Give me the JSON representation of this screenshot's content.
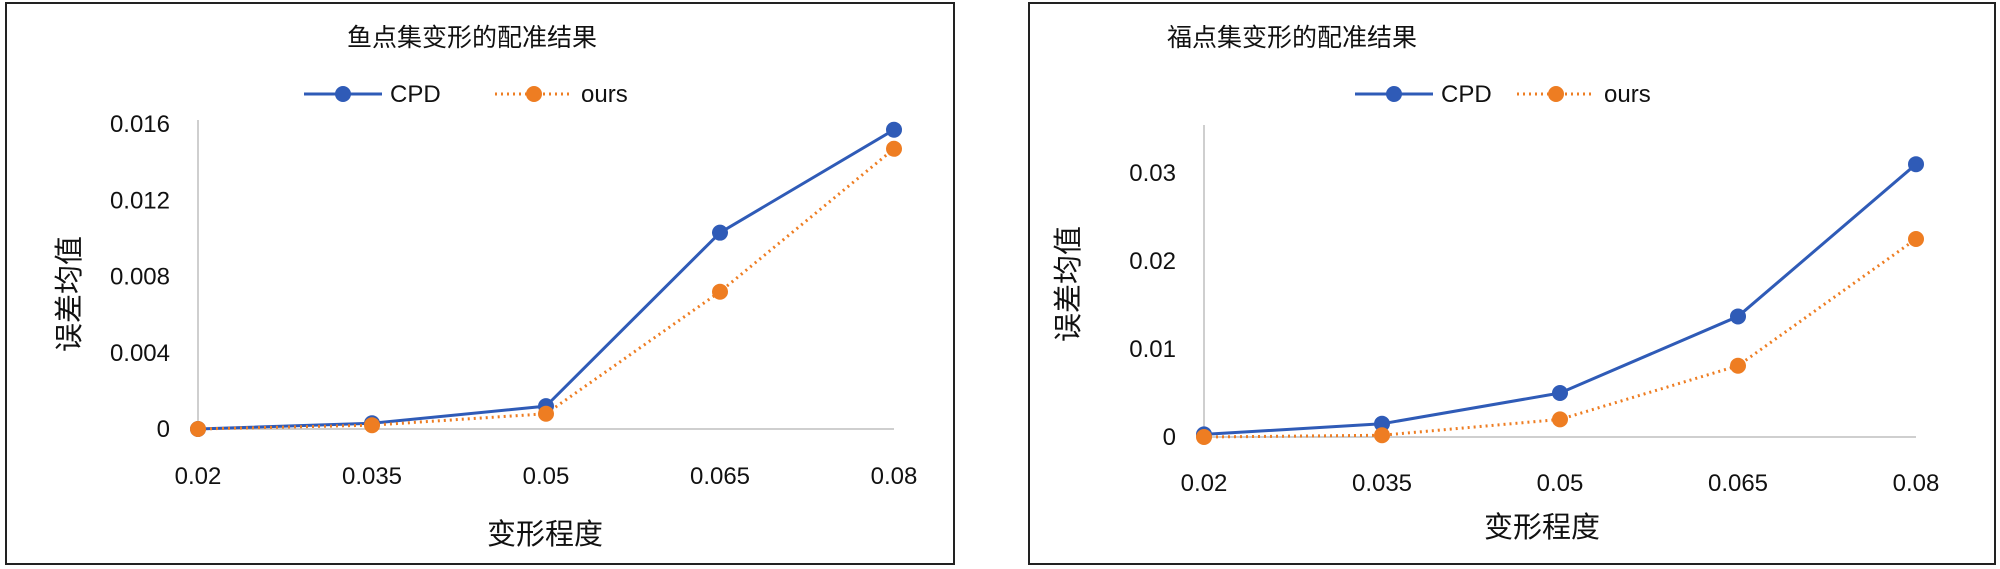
{
  "colors": {
    "cpd": "#2f5bb7",
    "ours": "#ee7d22",
    "axis": "#bfbfbf"
  },
  "chart_data": [
    {
      "type": "line",
      "title": "鱼点集变形的配准结果",
      "xlabel": "变形程度",
      "ylabel": "误差均值",
      "categories": [
        "0.02",
        "0.035",
        "0.05",
        "0.065",
        "0.08"
      ],
      "y_ticks": [
        "0",
        "0.004",
        "0.008",
        "0.012",
        "0.016"
      ],
      "ylim": [
        0,
        0.016
      ],
      "grid": false,
      "legend_position": "top",
      "series": [
        {
          "name": "CPD",
          "values": [
            0.0,
            0.0003,
            0.0012,
            0.0103,
            0.0157
          ],
          "line_style": "solid",
          "color": "#2f5bb7"
        },
        {
          "name": "ours",
          "values": [
            0.0,
            0.0002,
            0.0008,
            0.0072,
            0.0147
          ],
          "line_style": "dotted",
          "color": "#ee7d22"
        }
      ]
    },
    {
      "type": "line",
      "title": "福点集变形的配准结果",
      "xlabel": "变形程度",
      "ylabel": "误差均值",
      "categories": [
        "0.02",
        "0.035",
        "0.05",
        "0.065",
        "0.08"
      ],
      "y_ticks": [
        "0",
        "0.01",
        "0.02",
        "0.03"
      ],
      "ylim": [
        0,
        0.035
      ],
      "grid": false,
      "legend_position": "top",
      "series": [
        {
          "name": "CPD",
          "values": [
            0.0003,
            0.0015,
            0.005,
            0.0137,
            0.031
          ],
          "line_style": "solid",
          "color": "#2f5bb7"
        },
        {
          "name": "ours",
          "values": [
            0.0,
            0.0002,
            0.002,
            0.0081,
            0.0225
          ],
          "line_style": "dotted",
          "color": "#ee7d22"
        }
      ]
    }
  ]
}
